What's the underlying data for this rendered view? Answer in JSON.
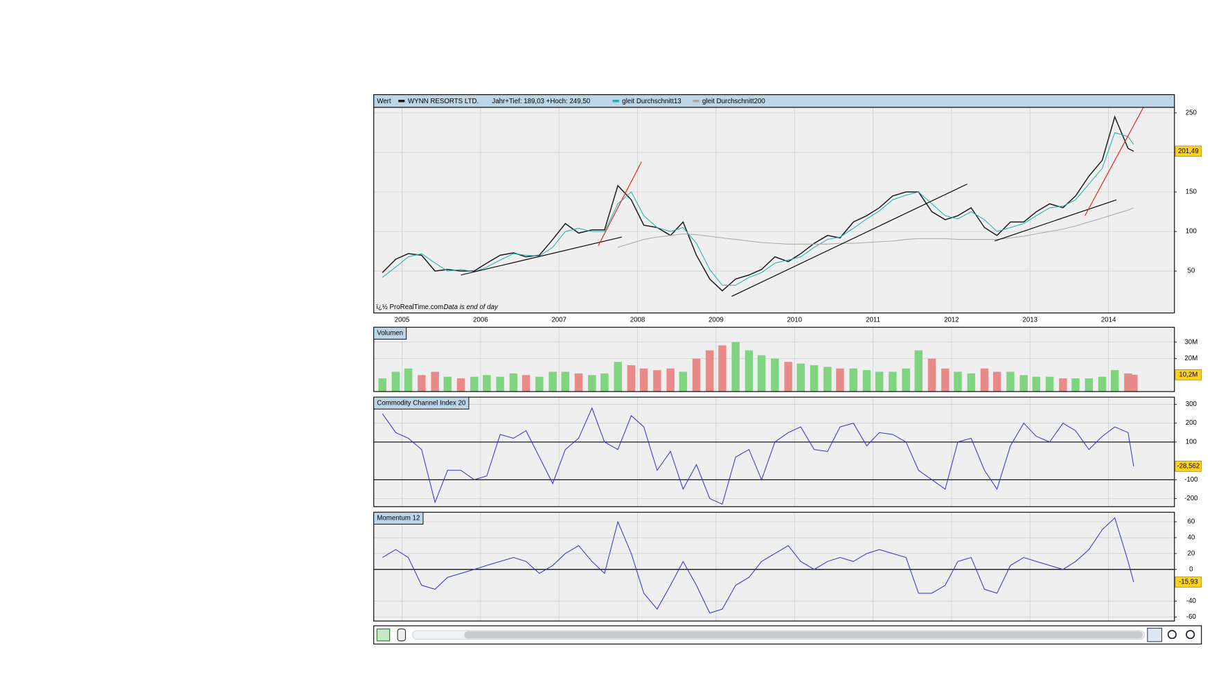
{
  "chart_data": [
    {
      "type": "line",
      "title": "Wert",
      "subtitle": "Jahr+Tief: 189,03 +Hoch: 249,50",
      "footnote": "ï¿½ ProRealTime.com",
      "footnote2": "Data is end of day",
      "x": [
        2004.75,
        2004.92,
        2005.08,
        2005.25,
        2005.42,
        2005.58,
        2005.75,
        2005.92,
        2006.08,
        2006.25,
        2006.42,
        2006.58,
        2006.75,
        2006.92,
        2007.08,
        2007.25,
        2007.42,
        2007.58,
        2007.75,
        2007.92,
        2008.08,
        2008.25,
        2008.42,
        2008.58,
        2008.75,
        2008.92,
        2009.08,
        2009.25,
        2009.42,
        2009.58,
        2009.75,
        2009.92,
        2010.08,
        2010.25,
        2010.42,
        2010.58,
        2010.75,
        2010.92,
        2011.08,
        2011.25,
        2011.42,
        2011.58,
        2011.75,
        2011.92,
        2012.08,
        2012.25,
        2012.42,
        2012.58,
        2012.75,
        2012.92,
        2013.08,
        2013.25,
        2013.42,
        2013.58,
        2013.75,
        2013.92,
        2014.08,
        2014.25,
        2014.32
      ],
      "series": [
        {
          "name": "WYNN RESORTS LTD.",
          "color": "#1a1a1a",
          "values": [
            48,
            65,
            72,
            70,
            50,
            52,
            50,
            50,
            60,
            70,
            73,
            68,
            70,
            90,
            110,
            98,
            102,
            102,
            158,
            140,
            108,
            105,
            95,
            112,
            70,
            40,
            25,
            40,
            45,
            52,
            68,
            62,
            72,
            85,
            95,
            92,
            112,
            120,
            130,
            145,
            150,
            150,
            125,
            115,
            120,
            130,
            105,
            95,
            112,
            112,
            125,
            135,
            130,
            145,
            170,
            190,
            245,
            205,
            201.49
          ]
        },
        {
          "name": "gleit Durchschnitt13",
          "color": "#20b0b0",
          "values": [
            42,
            55,
            68,
            72,
            60,
            50,
            52,
            49,
            55,
            64,
            72,
            70,
            69,
            80,
            100,
            104,
            100,
            100,
            135,
            150,
            120,
            105,
            100,
            105,
            85,
            52,
            32,
            32,
            42,
            48,
            60,
            64,
            68,
            80,
            90,
            93,
            104,
            116,
            126,
            140,
            146,
            150,
            135,
            120,
            116,
            125,
            115,
            100,
            105,
            110,
            120,
            130,
            132,
            140,
            160,
            180,
            225,
            220,
            210
          ]
        },
        {
          "name": "gleit Durchschnitt200",
          "color": "#a8a8a8",
          "values": [
            null,
            null,
            null,
            null,
            null,
            null,
            null,
            null,
            null,
            null,
            null,
            null,
            null,
            null,
            null,
            null,
            null,
            null,
            80,
            85,
            90,
            93,
            95,
            97,
            96,
            94,
            92,
            90,
            88,
            86,
            85,
            84,
            84,
            84,
            84,
            85,
            85,
            86,
            87,
            88,
            90,
            91,
            91,
            91,
            90,
            90,
            90,
            90,
            92,
            94,
            97,
            100,
            103,
            107,
            112,
            117,
            122,
            127,
            130
          ]
        }
      ],
      "last_label": "201,49",
      "trendlines": [
        {
          "color": "#000000",
          "points": [
            2005.75,
            45,
            2007.8,
            93
          ]
        },
        {
          "color": "#000000",
          "points": [
            2009.2,
            18,
            2012.2,
            160
          ]
        },
        {
          "color": "#000000",
          "points": [
            2012.55,
            88,
            2014.1,
            140
          ]
        },
        {
          "color": "#e02020",
          "points": [
            2007.5,
            82,
            2008.05,
            188
          ]
        },
        {
          "color": "#e02020",
          "points": [
            2013.7,
            120,
            2014.45,
            258
          ]
        }
      ],
      "xlim": [
        2004.64,
        2014.84
      ],
      "xticks": [
        2005,
        2006,
        2007,
        2008,
        2009,
        2010,
        2011,
        2012,
        2013,
        2014
      ],
      "ylim": [
        -3,
        257
      ],
      "yticks": [
        50,
        100,
        150,
        200,
        250
      ],
      "grid": true
    },
    {
      "type": "bar",
      "title": "Volumen",
      "x": [
        2004.75,
        2004.92,
        2005.08,
        2005.25,
        2005.42,
        2005.58,
        2005.75,
        2005.92,
        2006.08,
        2006.25,
        2006.42,
        2006.58,
        2006.75,
        2006.92,
        2007.08,
        2007.25,
        2007.42,
        2007.58,
        2007.75,
        2007.92,
        2008.08,
        2008.25,
        2008.42,
        2008.58,
        2008.75,
        2008.92,
        2009.08,
        2009.25,
        2009.42,
        2009.58,
        2009.75,
        2009.92,
        2010.08,
        2010.25,
        2010.42,
        2010.58,
        2010.75,
        2010.92,
        2011.08,
        2011.25,
        2011.42,
        2011.58,
        2011.75,
        2011.92,
        2012.08,
        2012.25,
        2012.42,
        2012.58,
        2012.75,
        2012.92,
        2013.08,
        2013.25,
        2013.42,
        2013.58,
        2013.75,
        2013.92,
        2014.08,
        2014.25,
        2014.32
      ],
      "values": [
        8,
        12,
        14,
        10,
        12,
        9,
        8,
        9,
        10,
        9,
        11,
        10,
        9,
        12,
        12,
        11,
        10,
        11,
        18,
        16,
        14,
        13,
        14,
        12,
        20,
        25,
        28,
        30,
        25,
        22,
        20,
        18,
        17,
        16,
        15,
        14,
        14,
        13,
        12,
        12,
        14,
        25,
        20,
        14,
        12,
        11,
        14,
        12,
        12,
        10,
        9,
        9,
        8,
        8,
        8,
        9,
        13,
        11,
        10.2
      ],
      "colors": {
        "up": "#7fd47f",
        "down": "#e88a8a"
      },
      "last_label": "10,2M",
      "xlim": [
        2004.64,
        2014.84
      ],
      "ylim": [
        0,
        39
      ],
      "yticks": [
        {
          "value": 20,
          "label": "20M"
        },
        {
          "value": 30,
          "label": "30M"
        }
      ],
      "grid": true
    },
    {
      "type": "line",
      "title": "Commodity Channel Index 20",
      "x": [
        2004.75,
        2004.92,
        2005.08,
        2005.25,
        2005.42,
        2005.58,
        2005.75,
        2005.92,
        2006.08,
        2006.25,
        2006.42,
        2006.58,
        2006.75,
        2006.92,
        2007.08,
        2007.25,
        2007.42,
        2007.58,
        2007.75,
        2007.92,
        2008.08,
        2008.25,
        2008.42,
        2008.58,
        2008.75,
        2008.92,
        2009.08,
        2009.25,
        2009.42,
        2009.58,
        2009.75,
        2009.92,
        2010.08,
        2010.25,
        2010.42,
        2010.58,
        2010.75,
        2010.92,
        2011.08,
        2011.25,
        2011.42,
        2011.58,
        2011.75,
        2011.92,
        2012.08,
        2012.25,
        2012.42,
        2012.58,
        2012.75,
        2012.92,
        2013.08,
        2013.25,
        2013.42,
        2013.58,
        2013.75,
        2013.92,
        2014.08,
        2014.25,
        2014.32
      ],
      "series": [
        {
          "color": "#3333cc",
          "values": [
            250,
            150,
            120,
            60,
            -220,
            -50,
            -50,
            -100,
            -80,
            140,
            120,
            160,
            20,
            -120,
            60,
            120,
            280,
            100,
            60,
            240,
            180,
            -50,
            50,
            -150,
            -20,
            -200,
            -230,
            20,
            60,
            -100,
            100,
            150,
            180,
            60,
            50,
            180,
            200,
            80,
            150,
            140,
            100,
            -50,
            -100,
            -150,
            100,
            120,
            -50,
            -150,
            80,
            200,
            130,
            100,
            200,
            160,
            60,
            130,
            180,
            150,
            -28.562
          ]
        }
      ],
      "last_label": "-28,562",
      "reference_lines": [
        100,
        -100
      ],
      "xlim": [
        2004.64,
        2014.84
      ],
      "ylim": [
        -243,
        338
      ],
      "yticks": [
        -200,
        -100,
        100,
        200,
        300
      ],
      "grid": true
    },
    {
      "type": "line",
      "title": "Momentum 12",
      "x": [
        2004.75,
        2004.92,
        2005.08,
        2005.25,
        2005.42,
        2005.58,
        2005.75,
        2005.92,
        2006.08,
        2006.25,
        2006.42,
        2006.58,
        2006.75,
        2006.92,
        2007.08,
        2007.25,
        2007.42,
        2007.58,
        2007.75,
        2007.92,
        2008.08,
        2008.25,
        2008.42,
        2008.58,
        2008.75,
        2008.92,
        2009.08,
        2009.25,
        2009.42,
        2009.58,
        2009.75,
        2009.92,
        2010.08,
        2010.25,
        2010.42,
        2010.58,
        2010.75,
        2010.92,
        2011.08,
        2011.25,
        2011.42,
        2011.58,
        2011.75,
        2011.92,
        2012.08,
        2012.25,
        2012.42,
        2012.58,
        2012.75,
        2012.92,
        2013.08,
        2013.25,
        2013.42,
        2013.58,
        2013.75,
        2013.92,
        2014.08,
        2014.25,
        2014.32
      ],
      "series": [
        {
          "color": "#3333cc",
          "values": [
            15,
            25,
            15,
            -20,
            -25,
            -10,
            -5,
            0,
            5,
            10,
            15,
            10,
            -5,
            5,
            20,
            30,
            10,
            -5,
            60,
            20,
            -30,
            -50,
            -20,
            10,
            -20,
            -55,
            -50,
            -20,
            -10,
            10,
            20,
            30,
            10,
            0,
            10,
            15,
            10,
            20,
            25,
            20,
            15,
            -30,
            -30,
            -20,
            10,
            15,
            -25,
            -30,
            5,
            15,
            10,
            5,
            0,
            10,
            25,
            50,
            65,
            10,
            -15.93
          ]
        }
      ],
      "last_label": "-15,93",
      "reference_lines": [
        0
      ],
      "xlim": [
        2004.64,
        2014.84
      ],
      "ylim": [
        -65,
        72
      ],
      "yticks": [
        -60,
        -40,
        0,
        20,
        40,
        60
      ],
      "grid": true
    }
  ]
}
